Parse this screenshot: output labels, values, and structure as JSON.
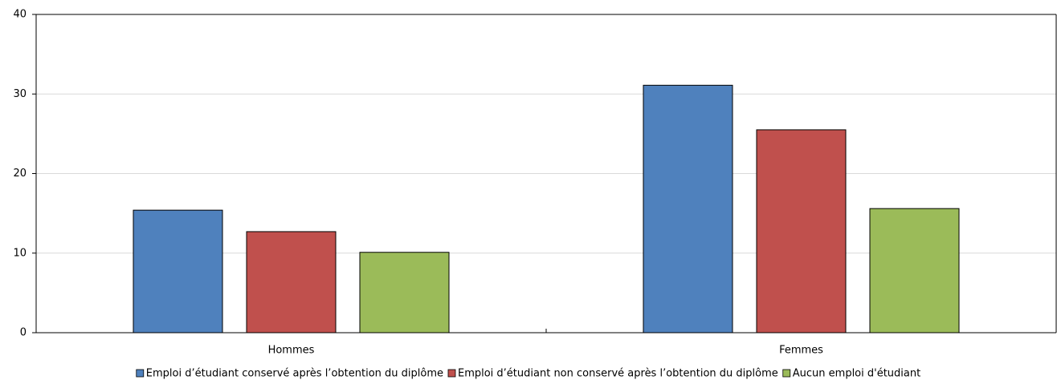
{
  "chart_data": {
    "type": "bar",
    "categories": [
      "Hommes",
      "Femmes"
    ],
    "series": [
      {
        "name": "Emploi d’étudiant conservé après l’obtention du diplôme",
        "color": "#4f81bd",
        "values": [
          15.4,
          31.1
        ]
      },
      {
        "name": "Emploi d’étudiant non conservé après l’obtention du diplôme",
        "color": "#c0504d",
        "values": [
          12.7,
          25.5
        ]
      },
      {
        "name": "Aucun emploi d'étudiant",
        "color": "#9bbb59",
        "values": [
          10.1,
          15.6
        ]
      }
    ],
    "ylim": [
      0,
      40
    ],
    "yticks": [
      0,
      10,
      20,
      30,
      40
    ],
    "grid": true,
    "legend": "bottom"
  }
}
